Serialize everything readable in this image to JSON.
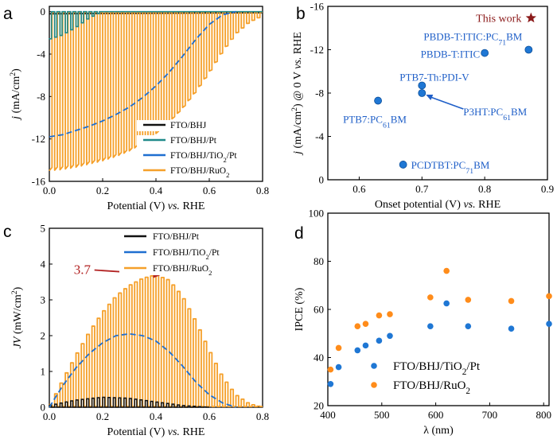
{
  "colors": {
    "black": "#111111",
    "teal": "#1f8a8a",
    "blue": "#1f6fd0",
    "orange": "#f5a02a",
    "dot_blue": "#1f77d4",
    "dot_orange": "#ff8c1a",
    "star": "#8b1a1a",
    "annot": "#b22222",
    "label_blue": "#1f5fc8"
  },
  "chart_data": [
    {
      "panel": "a",
      "type": "line",
      "xlabel": "Potential (V)",
      "xlabel_italic": "vs.",
      "xlabel_tail": "RHE",
      "ylabel": "j (mA/cm²)",
      "xlim": [
        0,
        0.8
      ],
      "ylim": [
        -16,
        0.5
      ],
      "xticks": [
        "0.0",
        "0.2",
        "0.4",
        "0.6",
        "0.8"
      ],
      "xtick_values": [
        0,
        0.2,
        0.4,
        0.6,
        0.8
      ],
      "yticks": [
        "0",
        "-4",
        "-8",
        "-12",
        "-16"
      ],
      "ytick_values": [
        0,
        -4,
        -8,
        -12,
        -16
      ],
      "legend": [
        "FTO/BHJ",
        "FTO/BHJ/Pt",
        "FTO/BHJ/TiO2/Pt",
        "FTO/BHJ/RuO2"
      ],
      "series": [
        {
          "name": "FTO/BHJ",
          "x": [
            0,
            0.8
          ],
          "y": [
            -0.2,
            -0.1
          ]
        },
        {
          "name": "FTO/BHJ/Pt",
          "chopped": true,
          "dark": 0,
          "x": [
            0,
            0.05,
            0.1,
            0.15,
            0.2
          ],
          "y": [
            -2.6,
            -2.2,
            -1.5,
            -0.6,
            0
          ]
        },
        {
          "name": "FTO/BHJ/TiO2/Pt",
          "x": [
            0,
            0.05,
            0.1,
            0.15,
            0.2,
            0.25,
            0.3,
            0.35,
            0.4,
            0.45,
            0.5,
            0.55,
            0.6,
            0.65,
            0.7
          ],
          "y": [
            -11.8,
            -11.6,
            -11.2,
            -10.8,
            -10.3,
            -9.7,
            -9.0,
            -8.1,
            -7.0,
            -5.7,
            -4.2,
            -2.6,
            -1.2,
            -0.3,
            0
          ]
        },
        {
          "name": "FTO/BHJ/RuO2",
          "chopped": true,
          "dark": 0,
          "x": [
            0,
            0.05,
            0.1,
            0.15,
            0.2,
            0.25,
            0.3,
            0.35,
            0.4,
            0.45,
            0.5,
            0.55,
            0.6,
            0.65,
            0.7,
            0.75,
            0.8
          ],
          "y": [
            -15,
            -14.9,
            -14.7,
            -14.4,
            -14.1,
            -13.7,
            -13.2,
            -12.5,
            -11.6,
            -10.5,
            -9.2,
            -7.6,
            -5.8,
            -3.8,
            -2.1,
            -1.0,
            -0.4
          ]
        }
      ]
    },
    {
      "panel": "b",
      "type": "scatter",
      "xlabel": "Onset potential (V)",
      "xlabel_italic": "vs.",
      "xlabel_tail": "RHE",
      "ylabel": "j (mA/cm²) @ 0 V vs. RHE",
      "xlim": [
        0.55,
        0.9
      ],
      "ylim": [
        0,
        -16
      ],
      "xticks": [
        "0.6",
        "0.7",
        "0.8",
        "0.9"
      ],
      "xtick_values": [
        0.6,
        0.7,
        0.8,
        0.9
      ],
      "yticks": [
        "-16",
        "-12",
        "-8",
        "-4",
        "0"
      ],
      "ytick_values": [
        -16,
        -12,
        -8,
        -4,
        0
      ],
      "this_work": {
        "label": "This work",
        "x": 0.87,
        "y": -15
      },
      "points": [
        {
          "label": "PBDB-T:ITIC:PC71BM",
          "x": 0.87,
          "y": -12.0
        },
        {
          "label": "PBDB-T:ITIC",
          "x": 0.8,
          "y": -11.7
        },
        {
          "label": "PTB7-Th:PDI-V",
          "x": 0.7,
          "y": -8.7
        },
        {
          "label": "P3HT:PC61BM",
          "x": 0.7,
          "y": -8.0
        },
        {
          "label": "PTB7:PC61BM",
          "x": 0.63,
          "y": -7.3
        },
        {
          "label": "PCDTBT:PC71BM",
          "x": 0.67,
          "y": -1.4
        }
      ]
    },
    {
      "panel": "c",
      "type": "line",
      "xlabel": "Potential (V)",
      "xlabel_italic": "vs.",
      "xlabel_tail": "RHE",
      "ylabel": "JV (mW/cm²)",
      "xlim": [
        0,
        0.8
      ],
      "ylim": [
        0,
        5
      ],
      "xticks": [
        "0.0",
        "0.2",
        "0.4",
        "0.6",
        "0.8"
      ],
      "xtick_values": [
        0,
        0.2,
        0.4,
        0.6,
        0.8
      ],
      "yticks": [
        "0",
        "1",
        "2",
        "3",
        "4",
        "5"
      ],
      "ytick_values": [
        0,
        1,
        2,
        3,
        4,
        5
      ],
      "annotation": {
        "text": "3.7",
        "x": 0.42,
        "y": 3.7
      },
      "legend": [
        "FTO/BHJ/Pt",
        "FTO/BHJ/TiO2/Pt",
        "FTO/BHJ/RuO2"
      ],
      "series": [
        {
          "name": "FTO/BHJ/Pt",
          "chopped": true,
          "dark": 0,
          "x": [
            0,
            0.1,
            0.2,
            0.3,
            0.4,
            0.5,
            0.6
          ],
          "y": [
            0.05,
            0.2,
            0.28,
            0.25,
            0.15,
            0.05,
            0
          ]
        },
        {
          "name": "FTO/BHJ/TiO2/Pt",
          "x": [
            0,
            0.05,
            0.1,
            0.15,
            0.2,
            0.25,
            0.3,
            0.35,
            0.4,
            0.45,
            0.5,
            0.55,
            0.6,
            0.65,
            0.7
          ],
          "y": [
            0,
            0.6,
            1.1,
            1.5,
            1.8,
            2.0,
            2.05,
            2.0,
            1.85,
            1.55,
            1.15,
            0.7,
            0.35,
            0.12,
            0
          ]
        },
        {
          "name": "FTO/BHJ/RuO2",
          "chopped": true,
          "dark": 0,
          "x": [
            0,
            0.05,
            0.1,
            0.15,
            0.2,
            0.25,
            0.3,
            0.35,
            0.4,
            0.45,
            0.5,
            0.55,
            0.6,
            0.65,
            0.7,
            0.75,
            0.8
          ],
          "y": [
            0,
            0.75,
            1.45,
            2.1,
            2.65,
            3.1,
            3.4,
            3.6,
            3.7,
            3.55,
            3.1,
            2.4,
            1.6,
            0.85,
            0.35,
            0.1,
            0
          ]
        }
      ]
    },
    {
      "panel": "d",
      "type": "scatter",
      "xlabel": "λ (nm)",
      "ylabel": "IPCE (%)",
      "xlim": [
        400,
        810
      ],
      "ylim": [
        20,
        100
      ],
      "xticks": [
        "400",
        "500",
        "600",
        "700",
        "800"
      ],
      "xtick_values": [
        400,
        500,
        600,
        700,
        800
      ],
      "yticks": [
        "20",
        "40",
        "60",
        "80",
        "100"
      ],
      "ytick_values": [
        20,
        40,
        60,
        80,
        100
      ],
      "legend": [
        "FTO/BHJ/TiO2/Pt",
        "FTO/BHJ/RuO2"
      ],
      "series": [
        {
          "name": "FTO/BHJ/TiO2/Pt",
          "x": [
            405,
            420,
            455,
            470,
            495,
            515,
            590,
            620,
            660,
            740,
            810
          ],
          "y": [
            29,
            36,
            43,
            45,
            47,
            49,
            53,
            62.5,
            53,
            52,
            54
          ]
        },
        {
          "name": "FTO/BHJ/RuO2",
          "x": [
            405,
            420,
            455,
            470,
            495,
            515,
            590,
            620,
            660,
            740,
            810
          ],
          "y": [
            35,
            44,
            53,
            54,
            57.5,
            58,
            65,
            76,
            64,
            63.5,
            65.5
          ]
        }
      ]
    }
  ]
}
